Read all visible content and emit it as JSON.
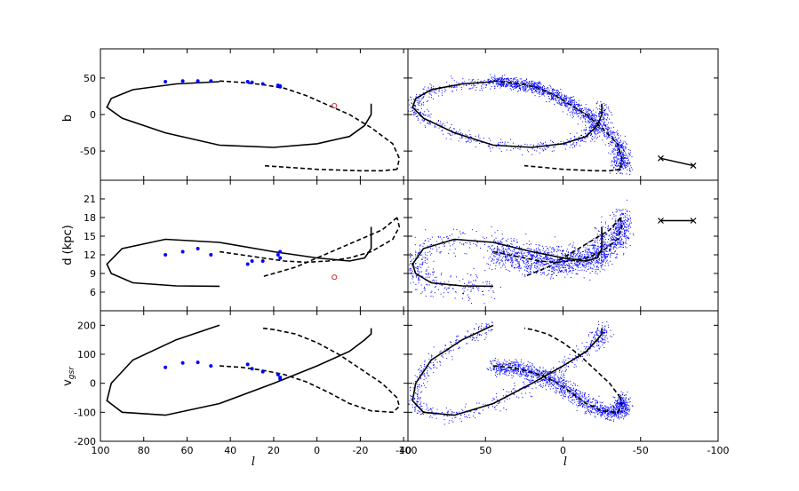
{
  "chart_data": {
    "type": "scatter",
    "xlabel_left": "l",
    "xlabel_right": "l",
    "ylabels": [
      "b",
      "d (kpc)",
      "v_gsr"
    ],
    "rows": [
      {
        "name": "b",
        "ylim": [
          -90,
          90
        ],
        "yticks": [
          -50,
          0,
          50
        ]
      },
      {
        "name": "d",
        "ylim": [
          3,
          24
        ],
        "yticks": [
          6,
          9,
          12,
          15,
          18,
          21
        ]
      },
      {
        "name": "v",
        "ylim": [
          -200,
          250
        ],
        "yticks": [
          -200,
          -100,
          0,
          100,
          200
        ]
      }
    ],
    "left_xlim": [
      100,
      -42
    ],
    "left_xticks": [
      100,
      80,
      60,
      40,
      20,
      0,
      -20,
      -40
    ],
    "right_xlim": [
      100,
      -100
    ],
    "right_xticks": [
      100,
      50,
      0,
      -50,
      -100
    ],
    "colors": {
      "orbit": "#000000",
      "stars": "#0000ff",
      "outlier": "#cc3333",
      "particles": "#0000ff"
    },
    "model_solid": {
      "l": [
        45,
        65,
        85,
        95,
        97,
        90,
        70,
        45,
        20,
        0,
        -15,
        -22,
        -25,
        -25
      ],
      "b": [
        45,
        42,
        34,
        22,
        10,
        -5,
        -25,
        -42,
        -45,
        -40,
        -30,
        -15,
        0,
        15
      ],
      "d": [
        6.95,
        7.0,
        7.5,
        9.0,
        10.5,
        13.0,
        14.5,
        14.0,
        12.5,
        11.5,
        11.0,
        11.5,
        13.0,
        16.5
      ],
      "v": [
        200,
        150,
        80,
        0,
        -60,
        -100,
        -110,
        -70,
        0,
        60,
        110,
        150,
        170,
        190
      ]
    },
    "model_dashed_upper": {
      "l": [
        45,
        35,
        25,
        15,
        5,
        -5,
        -15,
        -25,
        -35,
        -38,
        -37
      ],
      "b": [
        46,
        44,
        41,
        36,
        26,
        13,
        0,
        -18,
        -40,
        -60,
        -75
      ],
      "d": [
        12.5,
        12.0,
        11.5,
        11.0,
        10.8,
        11.0,
        11.5,
        12.5,
        14.5,
        16.5,
        18
      ],
      "v": [
        60,
        55,
        45,
        30,
        5,
        -30,
        -70,
        -95,
        -100,
        -80,
        -50
      ]
    },
    "model_dashed_lower": {
      "l": [
        -37,
        -30,
        -20,
        -10,
        0,
        10,
        20,
        25
      ],
      "b": [
        -75,
        -77,
        -77,
        -76,
        -75,
        -73,
        -71,
        -70
      ],
      "d": [
        18.0,
        16.0,
        14.5,
        13.0,
        11.5,
        10.0,
        9.0,
        8.5
      ],
      "v": [
        -50,
        0,
        50,
        100,
        140,
        170,
        185,
        190
      ]
    },
    "stars": {
      "l": [
        70,
        62,
        55,
        49,
        32,
        30,
        25,
        18,
        17,
        17
      ],
      "b": [
        45,
        46,
        46,
        46,
        45,
        44,
        42,
        40,
        39,
        38
      ],
      "d": [
        12.0,
        12.5,
        13.0,
        12.0,
        10.5,
        11.0,
        11.0,
        12.0,
        12.5,
        11.5
      ],
      "v": [
        55,
        70,
        72,
        60,
        65,
        50,
        40,
        30,
        20,
        15
      ]
    },
    "outlier": {
      "l": -8,
      "b": 12,
      "d": 8.4,
      "v": null
    },
    "right_panel_markers": [
      {
        "row": 0,
        "l1": -63,
        "y1": -60,
        "l2": -84,
        "y2": -70
      },
      {
        "row": 1,
        "l1": -63,
        "y1": 17.5,
        "l2": -84,
        "y2": 17.5
      }
    ]
  }
}
